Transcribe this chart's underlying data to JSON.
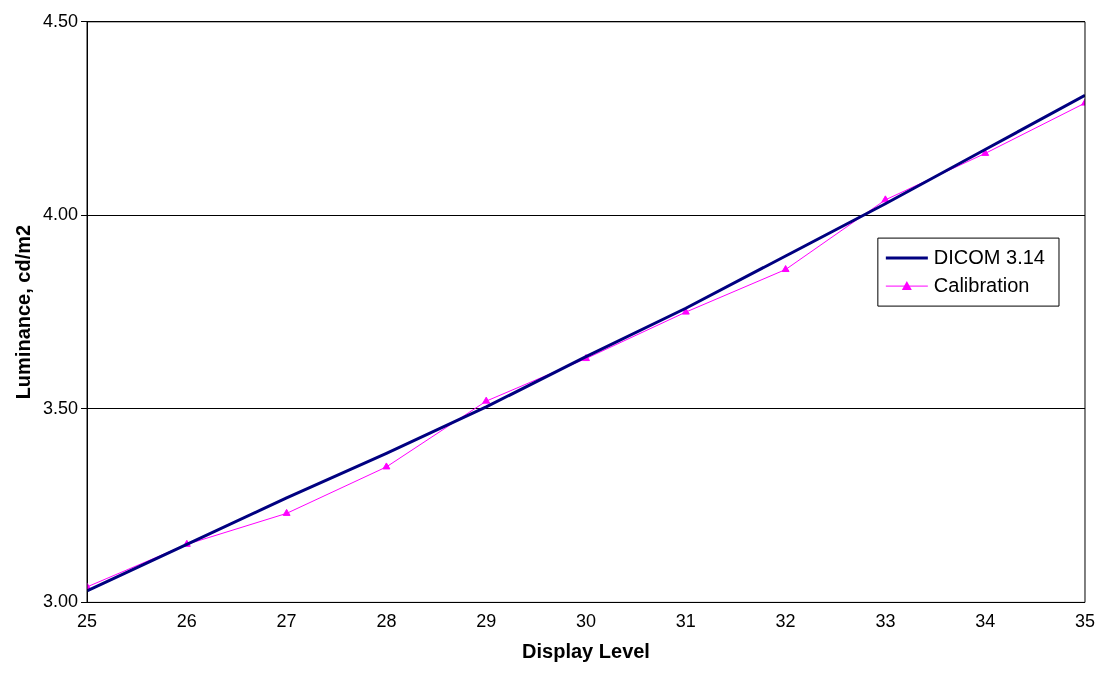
{
  "chart_data": {
    "type": "line",
    "xlabel": "Display Level",
    "ylabel": "Luminance, cd/m2",
    "x": [
      25,
      26,
      27,
      28,
      29,
      30,
      31,
      32,
      33,
      34,
      35
    ],
    "series": [
      {
        "name": "DICOM 3.14",
        "color": "#000080",
        "marker": "none",
        "values": [
          3.03,
          3.15,
          3.27,
          3.385,
          3.505,
          3.635,
          3.76,
          3.895,
          4.03,
          4.17,
          4.31
        ]
      },
      {
        "name": "Calibration",
        "color": "#ff00ff",
        "marker": "triangle",
        "values": [
          3.04,
          3.15,
          3.23,
          3.35,
          3.52,
          3.63,
          3.75,
          3.86,
          4.04,
          4.16,
          4.29
        ]
      }
    ],
    "xlim": [
      25,
      35
    ],
    "xticks": [
      25,
      26,
      27,
      28,
      29,
      30,
      31,
      32,
      33,
      34,
      35
    ],
    "ylim": [
      3,
      4.5
    ],
    "yticks": [
      {
        "value": 3,
        "label": "3.00"
      },
      {
        "value": 3.5,
        "label": "3.50"
      },
      {
        "value": 4,
        "label": "4.00"
      },
      {
        "value": 4.5,
        "label": "4.50"
      }
    ],
    "grid": "y",
    "legend": "right"
  }
}
